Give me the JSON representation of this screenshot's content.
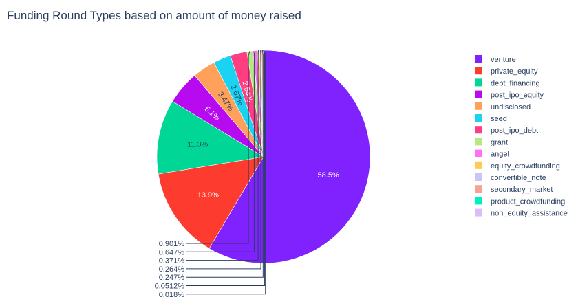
{
  "chart_data": {
    "type": "pie",
    "title": "Funding Round Types based on amount of money raised",
    "legend_position": "right",
    "slices": [
      {
        "label": "venture",
        "value": 58.5,
        "display": "58.5%",
        "color": "#7F22FE"
      },
      {
        "label": "private_equity",
        "value": 13.9,
        "display": "13.9%",
        "color": "#FD3B2F"
      },
      {
        "label": "debt_financing",
        "value": 11.3,
        "display": "11.3%",
        "color": "#00D797"
      },
      {
        "label": "post_ipo_equity",
        "value": 5.1,
        "display": "5.1%",
        "color": "#B70AF0"
      },
      {
        "label": "undisclosed",
        "value": 3.47,
        "display": "3.47%",
        "color": "#FFA15A"
      },
      {
        "label": "seed",
        "value": 2.67,
        "display": "2.67%",
        "color": "#19D3F3"
      },
      {
        "label": "post_ipo_debt",
        "value": 2.54,
        "display": "2.54%",
        "color": "#FF3E82"
      },
      {
        "label": "grant",
        "value": 0.901,
        "display": "0.901%",
        "color": "#B6E880"
      },
      {
        "label": "angel",
        "value": 0.647,
        "display": "0.647%",
        "color": "#FF6FF8"
      },
      {
        "label": "equity_crowdfunding",
        "value": 0.371,
        "display": "0.371%",
        "color": "#FECB52"
      },
      {
        "label": "convertible_note",
        "value": 0.264,
        "display": "0.264%",
        "color": "#C9C6F6"
      },
      {
        "label": "secondary_market",
        "value": 0.247,
        "display": "0.247%",
        "color": "#F6A396"
      },
      {
        "label": "product_crowdfunding",
        "value": 0.0512,
        "display": "0.0512%",
        "color": "#00F0C0"
      },
      {
        "label": "non_equity_assistance",
        "value": 0.018,
        "display": "0.018%",
        "color": "#DDBBF5"
      }
    ]
  }
}
